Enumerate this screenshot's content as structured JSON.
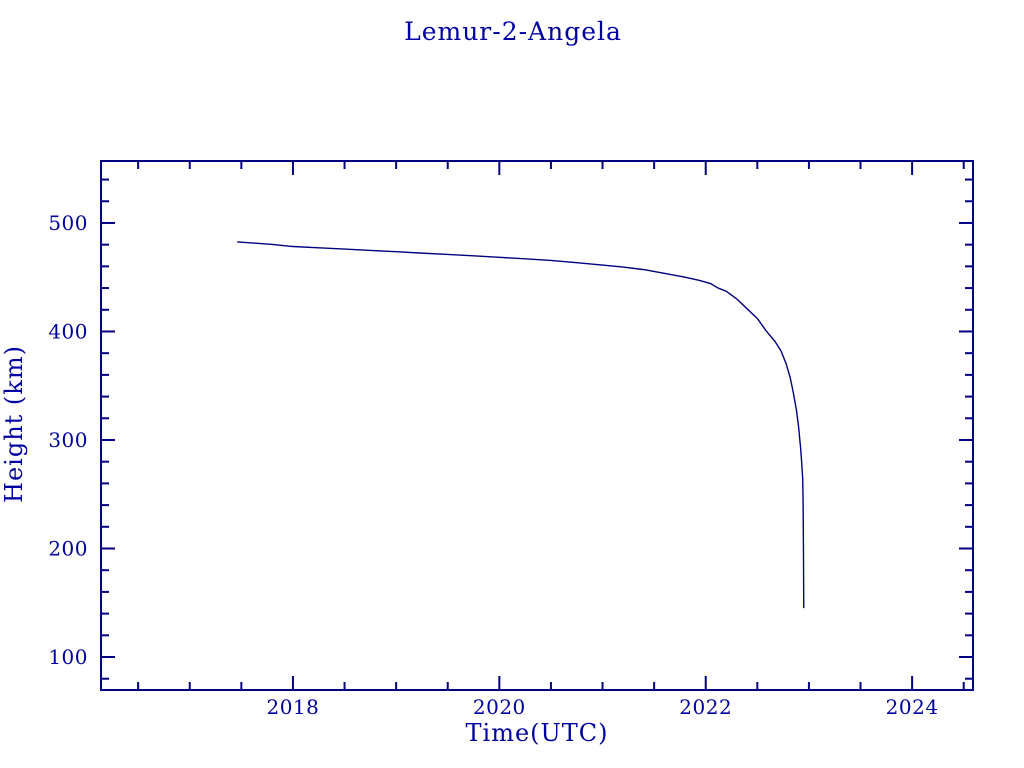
{
  "page": {
    "background": "#ffffff"
  },
  "chart_data": {
    "type": "line",
    "title": "Lemur-2-Angela",
    "xlabel": "Time(UTC)",
    "ylabel": "Height (km)",
    "xlim": [
      2016.14,
      2024.59
    ],
    "ylim": [
      69.6,
      557.1
    ],
    "x_major_ticks": [
      2018,
      2020,
      2022,
      2024
    ],
    "x_minor_step": 0.5,
    "y_major_ticks": [
      100,
      200,
      300,
      400,
      500
    ],
    "y_minor_step": 20,
    "grid": false,
    "legend": "none",
    "axis_color": "#000080",
    "line_color": "#000080",
    "text_color": "#0000A0",
    "series": [
      {
        "name": "Lemur-2-Angela",
        "points": [
          [
            2017.46,
            482.5
          ],
          [
            2017.6,
            481.6
          ],
          [
            2017.8,
            480.2
          ],
          [
            2018.0,
            478.3
          ],
          [
            2018.25,
            477.1
          ],
          [
            2018.5,
            475.9
          ],
          [
            2018.75,
            474.7
          ],
          [
            2019.0,
            473.5
          ],
          [
            2019.25,
            472.2
          ],
          [
            2019.5,
            471.0
          ],
          [
            2019.75,
            469.7
          ],
          [
            2020.0,
            468.3
          ],
          [
            2020.25,
            467.0
          ],
          [
            2020.5,
            465.5
          ],
          [
            2020.75,
            463.4
          ],
          [
            2021.0,
            461.2
          ],
          [
            2021.2,
            459.4
          ],
          [
            2021.4,
            457.0
          ],
          [
            2021.65,
            452.7
          ],
          [
            2021.8,
            450.0
          ],
          [
            2021.94,
            447.0
          ],
          [
            2022.05,
            444.0
          ],
          [
            2022.12,
            440.0
          ],
          [
            2022.2,
            437.0
          ],
          [
            2022.3,
            430.0
          ],
          [
            2022.4,
            421.0
          ],
          [
            2022.5,
            412.0
          ],
          [
            2022.59,
            400.0
          ],
          [
            2022.67,
            391.0
          ],
          [
            2022.73,
            382.0
          ],
          [
            2022.78,
            370.0
          ],
          [
            2022.82,
            357.0
          ],
          [
            2022.85,
            343.0
          ],
          [
            2022.88,
            327.0
          ],
          [
            2022.9,
            312.0
          ],
          [
            2022.92,
            292.0
          ],
          [
            2022.93,
            279.0
          ],
          [
            2022.94,
            264.0
          ],
          [
            2022.944,
            240.0
          ],
          [
            2022.947,
            200.0
          ],
          [
            2022.95,
            145.0
          ]
        ]
      }
    ]
  }
}
